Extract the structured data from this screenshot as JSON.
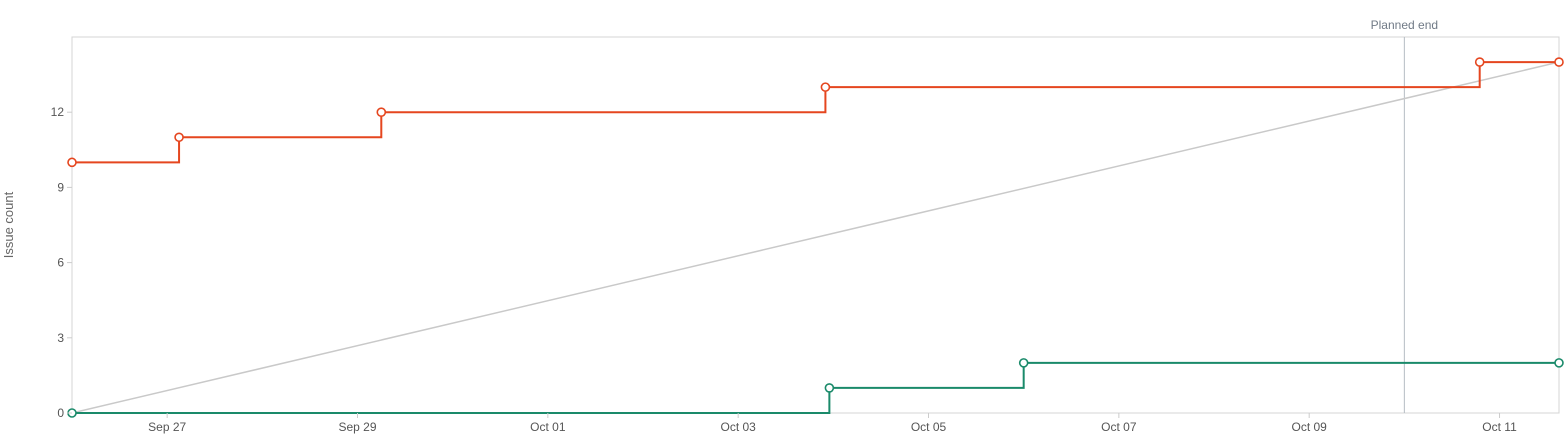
{
  "chart_data": {
    "type": "line",
    "ylabel": "Issue count",
    "ylim": [
      0,
      15
    ],
    "yticks": [
      "0",
      "3",
      "6",
      "9",
      "12"
    ],
    "xlim": [
      "2026-09-26",
      "2026-10-11T15:00"
    ],
    "xticks": [
      {
        "date": "2026-09-27",
        "label": "Sep 27"
      },
      {
        "date": "2026-09-29",
        "label": "Sep 29"
      },
      {
        "date": "2026-10-01",
        "label": "Oct 01"
      },
      {
        "date": "2026-10-03",
        "label": "Oct 03"
      },
      {
        "date": "2026-10-05",
        "label": "Oct 05"
      },
      {
        "date": "2026-10-07",
        "label": "Oct 07"
      },
      {
        "date": "2026-10-09",
        "label": "Oct 09"
      },
      {
        "date": "2026-10-11",
        "label": "Oct 11"
      }
    ],
    "planned_end": {
      "label": "Planned end",
      "date": "2026-10-10"
    },
    "guideline": {
      "from": {
        "x": "2026-09-26",
        "y": 0
      },
      "to": {
        "x": "2026-10-11T15:00",
        "y": 14
      },
      "color": "#c9c9c9"
    },
    "series": [
      {
        "color": "#e5461f",
        "step": true,
        "points": [
          {
            "x": "2026-09-26",
            "y": 10
          },
          {
            "x": "2026-09-27T03:00",
            "y": 11
          },
          {
            "x": "2026-09-29T06:00",
            "y": 12
          },
          {
            "x": "2026-10-03T22:00",
            "y": 13
          },
          {
            "x": "2026-10-10T19:00",
            "y": 14
          },
          {
            "x": "2026-10-11T15:00",
            "y": 14
          }
        ]
      },
      {
        "color": "#1a8a6a",
        "step": true,
        "points": [
          {
            "x": "2026-09-26",
            "y": 0
          },
          {
            "x": "2026-10-03T23:00",
            "y": 1
          },
          {
            "x": "2026-10-06T00:00",
            "y": 2
          },
          {
            "x": "2026-10-11T15:00",
            "y": 2
          }
        ]
      }
    ],
    "grid": false
  }
}
